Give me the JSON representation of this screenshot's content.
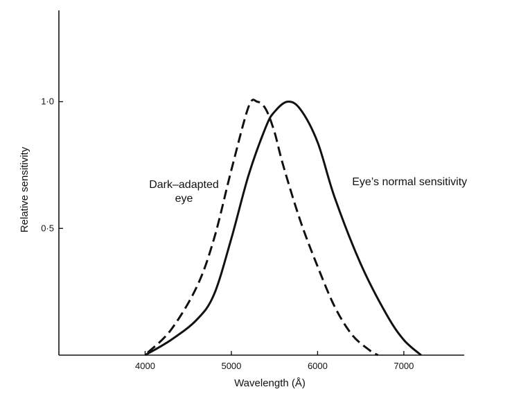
{
  "chart_data": {
    "type": "line",
    "title": "",
    "xlabel": "Wavelength (Å)",
    "ylabel": "Relative sensitivity",
    "xlim": [
      3000,
      7700
    ],
    "ylim": [
      0,
      1.36
    ],
    "x_ticks": [
      4000,
      5000,
      6000,
      7000
    ],
    "x_tick_labels": [
      "4000",
      "5000",
      "6000",
      "7000"
    ],
    "y_ticks": [
      0.5,
      1.0
    ],
    "y_tick_labels": [
      "0·5",
      "1·0"
    ],
    "grid": false,
    "legend": "none",
    "series": [
      {
        "style": "dashed",
        "color": "#111111",
        "x": [
          4030,
          4300,
          4600,
          4800,
          5000,
          5200,
          5300,
          5400,
          5500,
          5600,
          5800,
          6000,
          6200,
          6400,
          6600,
          6700
        ],
        "y": [
          0.01,
          0.1,
          0.27,
          0.46,
          0.73,
          0.98,
          1.0,
          0.97,
          0.88,
          0.75,
          0.53,
          0.35,
          0.19,
          0.08,
          0.02,
          0.0
        ]
      },
      {
        "style": "solid",
        "color": "#111111",
        "x": [
          4000,
          4300,
          4600,
          4800,
          5000,
          5200,
          5400,
          5500,
          5650,
          5800,
          6000,
          6200,
          6500,
          6800,
          7000,
          7200
        ],
        "y": [
          0.0,
          0.06,
          0.14,
          0.24,
          0.46,
          0.71,
          0.9,
          0.96,
          1.0,
          0.97,
          0.84,
          0.62,
          0.36,
          0.16,
          0.06,
          0.0
        ]
      }
    ],
    "annotations": [
      {
        "lines": [
          "Dark–adapted",
          "eye"
        ],
        "x": 4450,
        "y": 0.66,
        "anchor": "middle"
      },
      {
        "lines": [
          "Eye’s normal sensitivity"
        ],
        "x": 6400,
        "y": 0.67,
        "anchor": "start"
      }
    ]
  }
}
